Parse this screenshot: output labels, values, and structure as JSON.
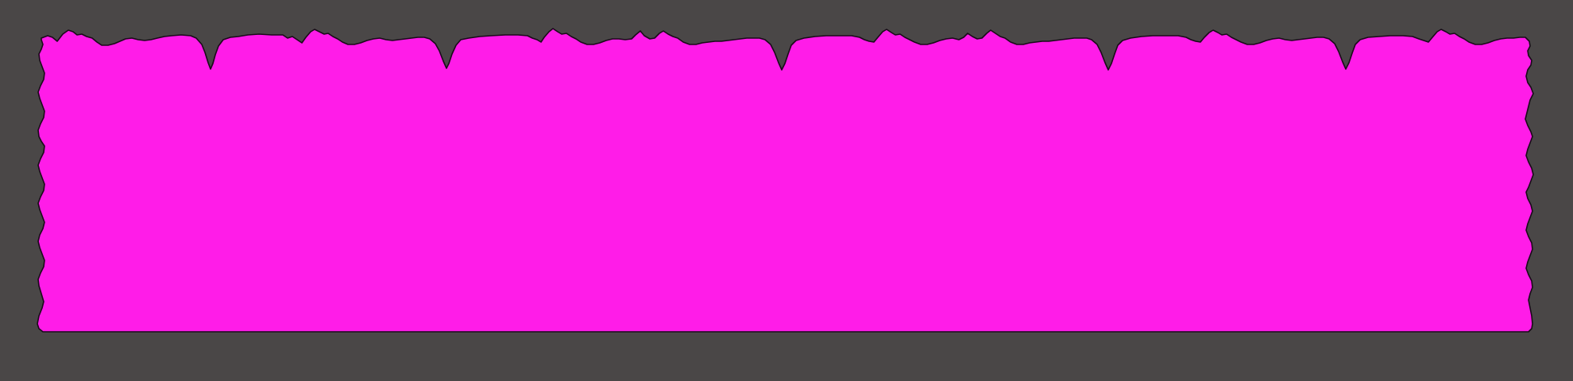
{
  "scene": {
    "background_color": "#4a4747",
    "block_color": "#ff1ce8",
    "outline_color": "#1a0a1a"
  }
}
